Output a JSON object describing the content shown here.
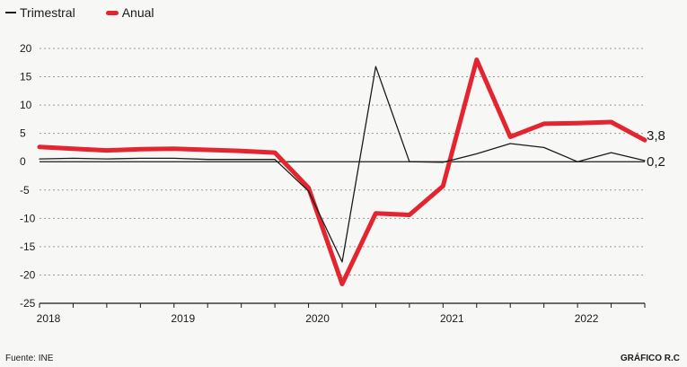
{
  "chart_data": {
    "type": "line",
    "title": "",
    "xlabel": "",
    "ylabel": "",
    "ylim": [
      -25,
      20
    ],
    "yticks": [
      20,
      15,
      10,
      5,
      0,
      -5,
      -10,
      -15,
      -20,
      -25
    ],
    "ytick_labels": [
      "20",
      "15",
      "10",
      "5",
      "0",
      "-5",
      "-10",
      "-15",
      "-20",
      "-25"
    ],
    "x_labels": [
      "2018",
      "2019",
      "2020",
      "2021",
      "2022"
    ],
    "x_label_positions": [
      0,
      4,
      8,
      12,
      16
    ],
    "grid": true,
    "legend": "top-left",
    "series": [
      {
        "name": "Trimestral",
        "color": "#1a1a1a",
        "x": [
          0,
          1,
          2,
          3,
          4,
          5,
          6,
          7,
          8,
          9,
          10,
          11,
          12,
          13,
          14,
          15,
          16,
          17,
          18
        ],
        "values": [
          0.5,
          0.6,
          0.5,
          0.6,
          0.6,
          0.4,
          0.4,
          0.4,
          -5.2,
          -17.7,
          16.8,
          0.0,
          -0.1,
          1.4,
          3.2,
          2.5,
          0.0,
          1.6,
          0.2
        ],
        "end_label": "0,2"
      },
      {
        "name": "Anual",
        "color": "#e3252f",
        "x": [
          0,
          1,
          2,
          3,
          4,
          5,
          6,
          7,
          8,
          9,
          10,
          11,
          12,
          13,
          14,
          15,
          16,
          17,
          18
        ],
        "values": [
          2.6,
          2.3,
          2.0,
          2.2,
          2.3,
          2.1,
          1.9,
          1.6,
          -4.6,
          -21.6,
          -9.1,
          -9.4,
          -4.3,
          18.0,
          4.4,
          6.7,
          6.8,
          7.0,
          3.8
        ],
        "end_label": "3,8"
      }
    ],
    "source": "Fuente: INE",
    "credit": "GRÁFICO R.C"
  }
}
